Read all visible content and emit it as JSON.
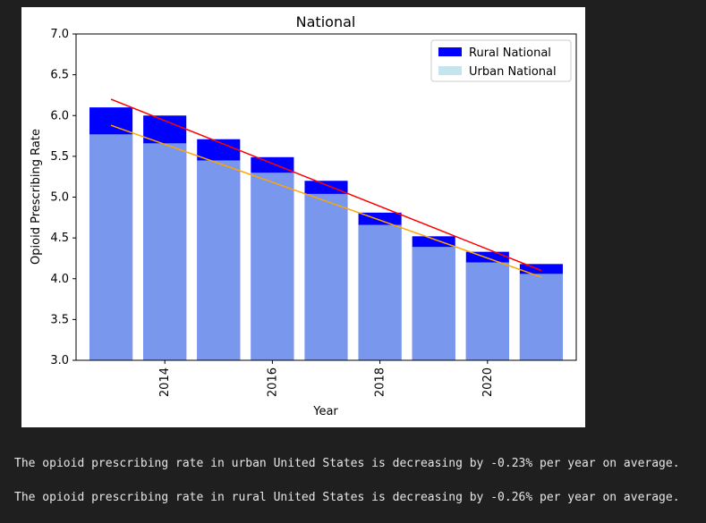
{
  "chart_data": {
    "type": "bar",
    "title": "National",
    "xlabel": "Year",
    "ylabel": "Opioid Prescribing Rate",
    "ylim": [
      3.0,
      7.0
    ],
    "yticks": [
      "3.0",
      "3.5",
      "4.0",
      "4.5",
      "5.0",
      "5.5",
      "6.0",
      "6.5",
      "7.0"
    ],
    "xticks": [
      "2014",
      "2016",
      "2018",
      "2020"
    ],
    "x": [
      2013,
      2014,
      2015,
      2016,
      2017,
      2018,
      2019,
      2020,
      2021
    ],
    "series": [
      {
        "name": "Rural National",
        "color": "#0000ff",
        "values": [
          6.1,
          6.0,
          5.71,
          5.49,
          5.2,
          4.81,
          4.52,
          4.33,
          4.18
        ]
      },
      {
        "name": "Urban National",
        "color": "#add8e6",
        "opacity": 0.7,
        "values": [
          5.77,
          5.66,
          5.45,
          5.3,
          5.04,
          4.66,
          4.39,
          4.2,
          4.06
        ]
      }
    ],
    "trendlines": [
      {
        "series": "Rural National",
        "color": "#ff0000",
        "x": [
          2013,
          2021
        ],
        "y": [
          6.2,
          4.1
        ]
      },
      {
        "series": "Urban National",
        "color": "#ffa500",
        "x": [
          2013,
          2021
        ],
        "y": [
          5.88,
          4.02
        ]
      }
    ],
    "legend_position": "top-right"
  },
  "output": {
    "line1": "The opioid prescribing rate in urban United States is decreasing by -0.23% per year on average.",
    "line2": "The opioid prescribing rate in rural United States is decreasing by -0.26% per year on average."
  }
}
